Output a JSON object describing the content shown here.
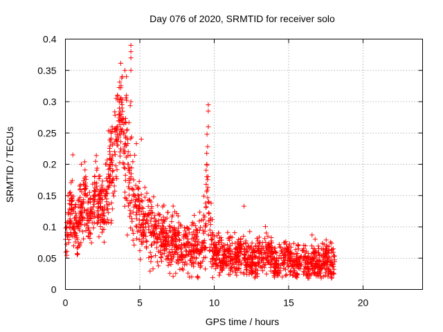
{
  "chart_data": {
    "type": "scatter",
    "title": "Day 076 of 2020, SRMTID for receiver solo",
    "xlabel": "GPS time / hours",
    "ylabel": "SRMTID / TECUs",
    "xlim": [
      0,
      24
    ],
    "ylim": [
      0,
      0.4
    ],
    "grid": true,
    "marker": "+",
    "color": "#ff0000",
    "x_ticks": [
      {
        "value": 0,
        "label": "0"
      },
      {
        "value": 5,
        "label": "5"
      },
      {
        "value": 10,
        "label": "10"
      },
      {
        "value": 15,
        "label": "15"
      },
      {
        "value": 20,
        "label": "20"
      }
    ],
    "y_ticks": [
      {
        "value": 0,
        "label": "0"
      },
      {
        "value": 0.05,
        "label": "0.05"
      },
      {
        "value": 0.1,
        "label": "0.1"
      },
      {
        "value": 0.15,
        "label": "0.15"
      },
      {
        "value": 0.2,
        "label": "0.2"
      },
      {
        "value": 0.25,
        "label": "0.25"
      },
      {
        "value": 0.3,
        "label": "0.3"
      },
      {
        "value": 0.35,
        "label": "0.35"
      },
      {
        "value": 0.4,
        "label": "0.4"
      }
    ],
    "series": [
      {
        "name": "SRMTID",
        "description": "Dense cloud of points (approx. 2000 samples) sampled from 0 to 18.1 h; values shown are a representative trace of the scatter",
        "x": [
          0.0,
          0.1,
          0.2,
          0.3,
          0.4,
          0.5,
          0.6,
          0.7,
          0.8,
          0.9,
          1.0,
          1.1,
          1.2,
          1.3,
          1.4,
          1.5,
          1.6,
          1.7,
          1.8,
          1.9,
          2.0,
          2.1,
          2.2,
          2.3,
          2.4,
          2.5,
          2.6,
          2.7,
          2.8,
          2.9,
          3.0,
          3.1,
          3.2,
          3.3,
          3.4,
          3.5,
          3.6,
          3.7,
          3.8,
          3.9,
          4.0,
          4.1,
          4.2,
          4.3,
          4.4,
          4.5,
          4.6,
          4.7,
          4.8,
          4.9,
          5.0,
          5.2,
          5.4,
          5.6,
          5.8,
          6.0,
          6.2,
          6.4,
          6.6,
          6.8,
          7.0,
          7.2,
          7.4,
          7.6,
          7.8,
          8.0,
          8.2,
          8.4,
          8.6,
          8.8,
          9.0,
          9.2,
          9.4,
          9.5,
          9.6,
          9.7,
          9.8,
          10.0,
          10.3,
          10.6,
          10.9,
          11.2,
          11.5,
          11.8,
          12.1,
          12.4,
          12.7,
          13.0,
          13.3,
          13.6,
          13.9,
          14.2,
          14.5,
          14.8,
          15.1,
          15.4,
          15.7,
          16.0,
          16.3,
          16.6,
          16.9,
          17.2,
          17.5,
          17.8,
          18.0
        ],
        "y": [
          0.08,
          0.1,
          0.12,
          0.11,
          0.13,
          0.1,
          0.09,
          0.11,
          0.08,
          0.1,
          0.12,
          0.13,
          0.14,
          0.16,
          0.15,
          0.12,
          0.11,
          0.13,
          0.12,
          0.14,
          0.15,
          0.17,
          0.13,
          0.14,
          0.12,
          0.13,
          0.11,
          0.15,
          0.16,
          0.18,
          0.2,
          0.17,
          0.19,
          0.22,
          0.24,
          0.26,
          0.28,
          0.27,
          0.29,
          0.25,
          0.22,
          0.23,
          0.2,
          0.19,
          0.18,
          0.16,
          0.15,
          0.14,
          0.13,
          0.15,
          0.12,
          0.11,
          0.1,
          0.1,
          0.09,
          0.09,
          0.08,
          0.08,
          0.09,
          0.08,
          0.07,
          0.08,
          0.07,
          0.07,
          0.06,
          0.07,
          0.07,
          0.06,
          0.07,
          0.06,
          0.06,
          0.07,
          0.1,
          0.2,
          0.14,
          0.11,
          0.08,
          0.06,
          0.06,
          0.05,
          0.06,
          0.05,
          0.05,
          0.06,
          0.05,
          0.05,
          0.04,
          0.05,
          0.05,
          0.06,
          0.05,
          0.04,
          0.05,
          0.05,
          0.05,
          0.04,
          0.05,
          0.05,
          0.04,
          0.05,
          0.04,
          0.04,
          0.05,
          0.04,
          0.04
        ],
        "outliers": [
          {
            "x": 4.4,
            "y": 0.39
          },
          {
            "x": 4.4,
            "y": 0.38
          },
          {
            "x": 4.4,
            "y": 0.37
          },
          {
            "x": 4.0,
            "y": 0.35
          },
          {
            "x": 4.4,
            "y": 0.35
          },
          {
            "x": 4.1,
            "y": 0.34
          },
          {
            "x": 4.1,
            "y": 0.31
          },
          {
            "x": 4.4,
            "y": 0.3
          },
          {
            "x": 9.6,
            "y": 0.295
          },
          {
            "x": 9.6,
            "y": 0.285
          },
          {
            "x": 9.6,
            "y": 0.26
          },
          {
            "x": 0.5,
            "y": 0.215
          },
          {
            "x": 5.1,
            "y": 0.24
          },
          {
            "x": 9.5,
            "y": 0.18
          },
          {
            "x": 12.0,
            "y": 0.133
          }
        ]
      }
    ]
  }
}
